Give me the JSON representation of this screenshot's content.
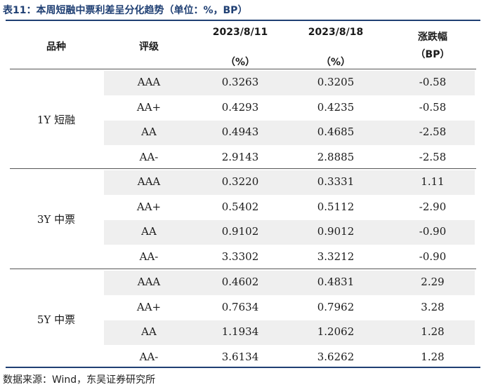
{
  "title": "表11：本周短融中票利差呈分化趋势（单位：%，BP）",
  "header": {
    "variety": "品种",
    "rating": "评级",
    "date1": "2023/8/11",
    "date2": "2023/8/18",
    "unit_pct": "（%）",
    "change": "涨跌幅",
    "unit_bp": "（BP）"
  },
  "groups": [
    {
      "name": "1Y 短融",
      "rows": [
        {
          "rating": "AAA",
          "v1": "0.3263",
          "v2": "0.3205",
          "chg": "-0.58"
        },
        {
          "rating": "AA+",
          "v1": "0.4293",
          "v2": "0.4235",
          "chg": "-0.58"
        },
        {
          "rating": "AA",
          "v1": "0.4943",
          "v2": "0.4685",
          "chg": "-2.58"
        },
        {
          "rating": "AA-",
          "v1": "2.9143",
          "v2": "2.8885",
          "chg": "-2.58"
        }
      ]
    },
    {
      "name": "3Y 中票",
      "rows": [
        {
          "rating": "AAA",
          "v1": "0.3220",
          "v2": "0.3331",
          "chg": "1.11"
        },
        {
          "rating": "AA+",
          "v1": "0.5402",
          "v2": "0.5112",
          "chg": "-2.90"
        },
        {
          "rating": "AA",
          "v1": "0.9102",
          "v2": "0.9012",
          "chg": "-0.90"
        },
        {
          "rating": "AA-",
          "v1": "3.3302",
          "v2": "3.3212",
          "chg": "-0.90"
        }
      ]
    },
    {
      "name": "5Y 中票",
      "rows": [
        {
          "rating": "AAA",
          "v1": "0.4602",
          "v2": "0.4831",
          "chg": "2.29"
        },
        {
          "rating": "AA+",
          "v1": "0.7634",
          "v2": "0.7962",
          "chg": "3.28"
        },
        {
          "rating": "AA",
          "v1": "1.1934",
          "v2": "1.2062",
          "chg": "1.28"
        },
        {
          "rating": "AA-",
          "v1": "3.6134",
          "v2": "3.6262",
          "chg": "1.28"
        }
      ]
    }
  ],
  "source": "数据来源：Wind，东吴证券研究所"
}
